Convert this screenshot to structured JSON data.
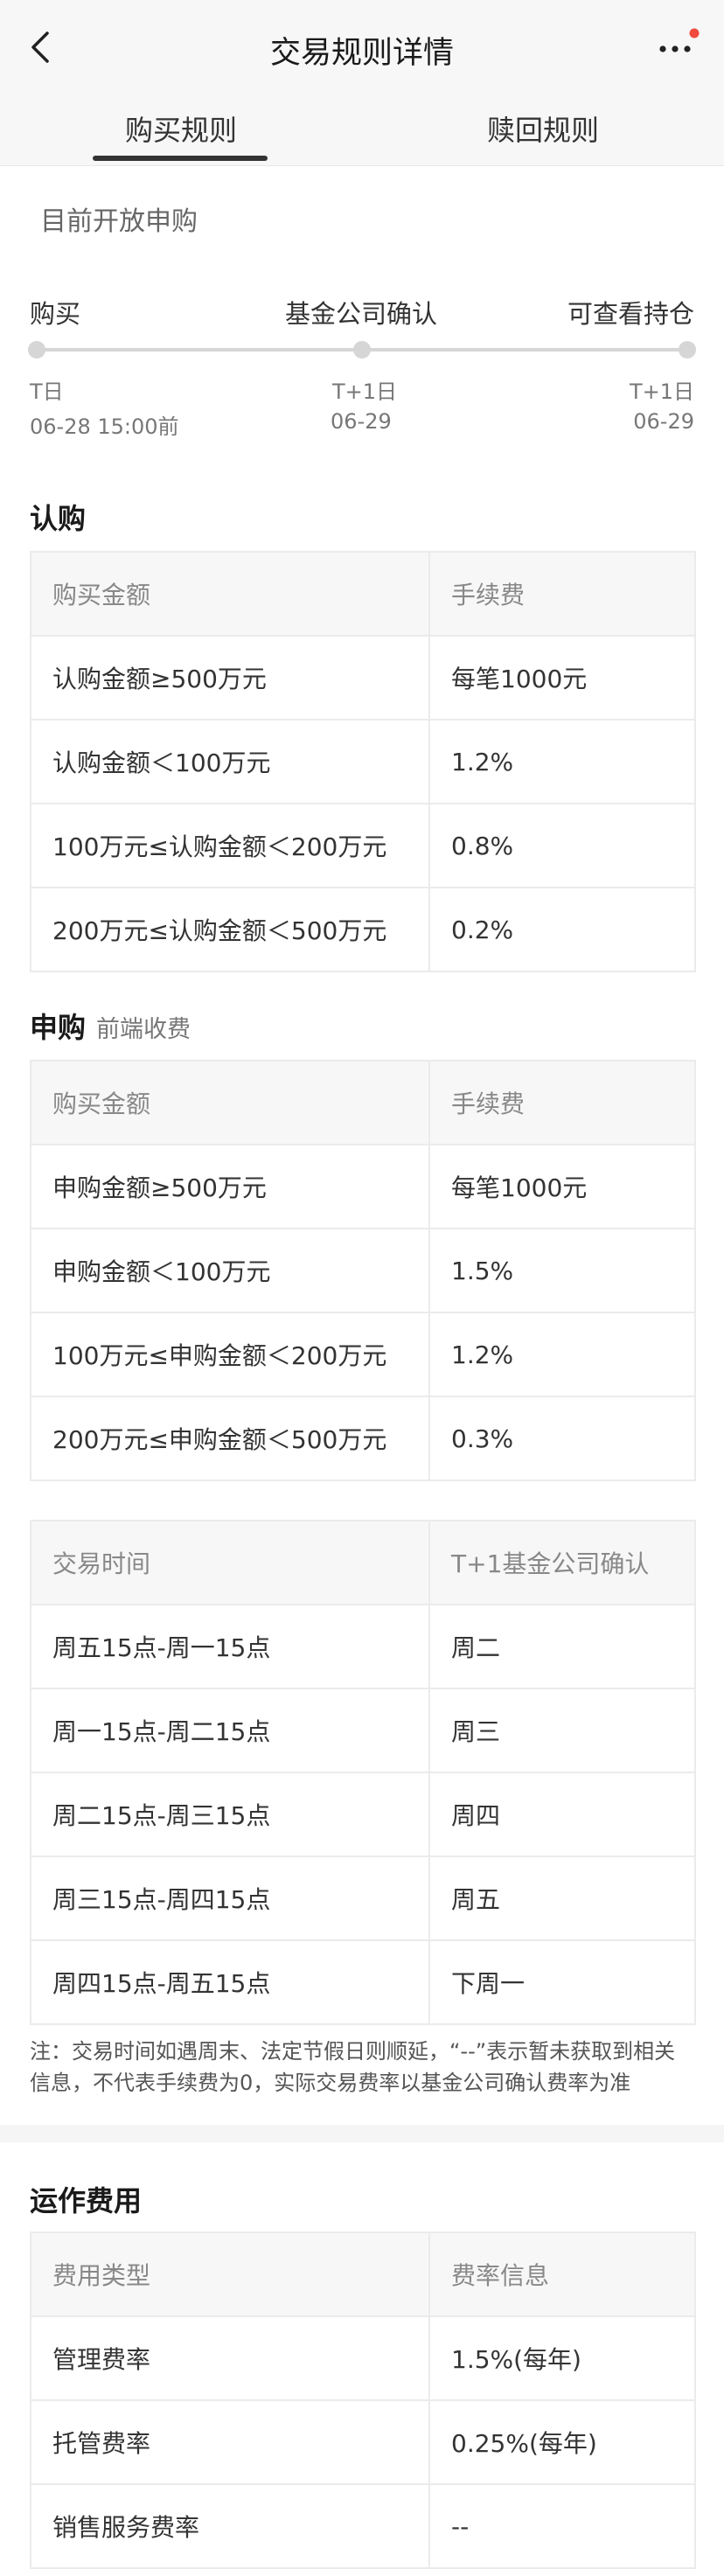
{
  "nav": {
    "title": "交易规则详情"
  },
  "tabs": [
    {
      "label": "购买规则",
      "active": true
    },
    {
      "label": "赎回规则",
      "active": false
    }
  ],
  "status": "目前开放申购",
  "timeline": [
    {
      "label": "购买",
      "day": "T日",
      "date": "06-28 15:00前"
    },
    {
      "label": "基金公司确认",
      "day": "T+1日",
      "date": "06-29"
    },
    {
      "label": "可查看持仓",
      "day": "T+1日",
      "date": "06-29"
    }
  ],
  "subscription": {
    "title": "认购",
    "headers": [
      "购买金额",
      "手续费"
    ],
    "rows": [
      [
        "认购金额≥500万元",
        "每笔1000元"
      ],
      [
        "认购金额＜100万元",
        "1.2%"
      ],
      [
        "100万元≤认购金额＜200万元",
        "0.8%"
      ],
      [
        "200万元≤认购金额＜500万元",
        "0.2%"
      ]
    ]
  },
  "purchase": {
    "title": "申购",
    "subtitle": "前端收费",
    "headers": [
      "购买金额",
      "手续费"
    ],
    "rows": [
      [
        "申购金额≥500万元",
        "每笔1000元"
      ],
      [
        "申购金额＜100万元",
        "1.5%"
      ],
      [
        "100万元≤申购金额＜200万元",
        "1.2%"
      ],
      [
        "200万元≤申购金额＜500万元",
        "0.3%"
      ]
    ]
  },
  "schedule": {
    "headers": [
      "交易时间",
      "T+1基金公司确认"
    ],
    "rows": [
      [
        "周五15点-周一15点",
        "周二"
      ],
      [
        "周一15点-周二15点",
        "周三"
      ],
      [
        "周二15点-周三15点",
        "周四"
      ],
      [
        "周三15点-周四15点",
        "周五"
      ],
      [
        "周四15点-周五15点",
        "下周一"
      ]
    ]
  },
  "note": "注：交易时间如遇周末、法定节假日则顺延，“--”表示暂未获取到相关信息，不代表手续费为0，实际交易费率以基金公司确认费率为准",
  "operation": {
    "title": "运作费用",
    "headers": [
      "费用类型",
      "费率信息"
    ],
    "rows": [
      [
        "管理费率",
        "1.5%(每年)"
      ],
      [
        "托管费率",
        "0.25%(每年)"
      ],
      [
        "销售服务费率",
        "--"
      ]
    ]
  },
  "colors": {
    "badge": "#f04b3c",
    "track": "#d6d6d6"
  }
}
